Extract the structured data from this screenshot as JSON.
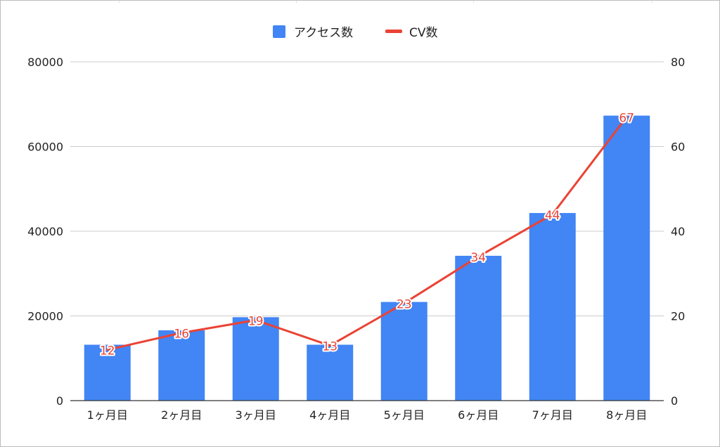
{
  "chart_data": {
    "type": "bar",
    "categories": [
      "1ヶ月目",
      "2ヶ月目",
      "3ヶ月目",
      "4ヶ月目",
      "5ヶ月目",
      "6ヶ月目",
      "7ヶ月目",
      "8ヶ月目"
    ],
    "series": [
      {
        "name": "アクセス数",
        "type": "bar",
        "axis": "left",
        "color": "#4285f4",
        "values": [
          13200,
          16600,
          19700,
          13200,
          23300,
          34200,
          44300,
          67300
        ]
      },
      {
        "name": "CV数",
        "type": "line",
        "axis": "right",
        "color": "#ea4335",
        "values": [
          12,
          16,
          19,
          13,
          23,
          34,
          44,
          67
        ]
      }
    ],
    "y_left": {
      "min": 0,
      "max": 80000,
      "ticks": [
        "0",
        "20000",
        "40000",
        "60000",
        "80000"
      ]
    },
    "y_right": {
      "min": 0,
      "max": 80,
      "ticks": [
        "0",
        "20",
        "40",
        "60",
        "80"
      ]
    },
    "grid": true,
    "legend_position": "top-center"
  }
}
